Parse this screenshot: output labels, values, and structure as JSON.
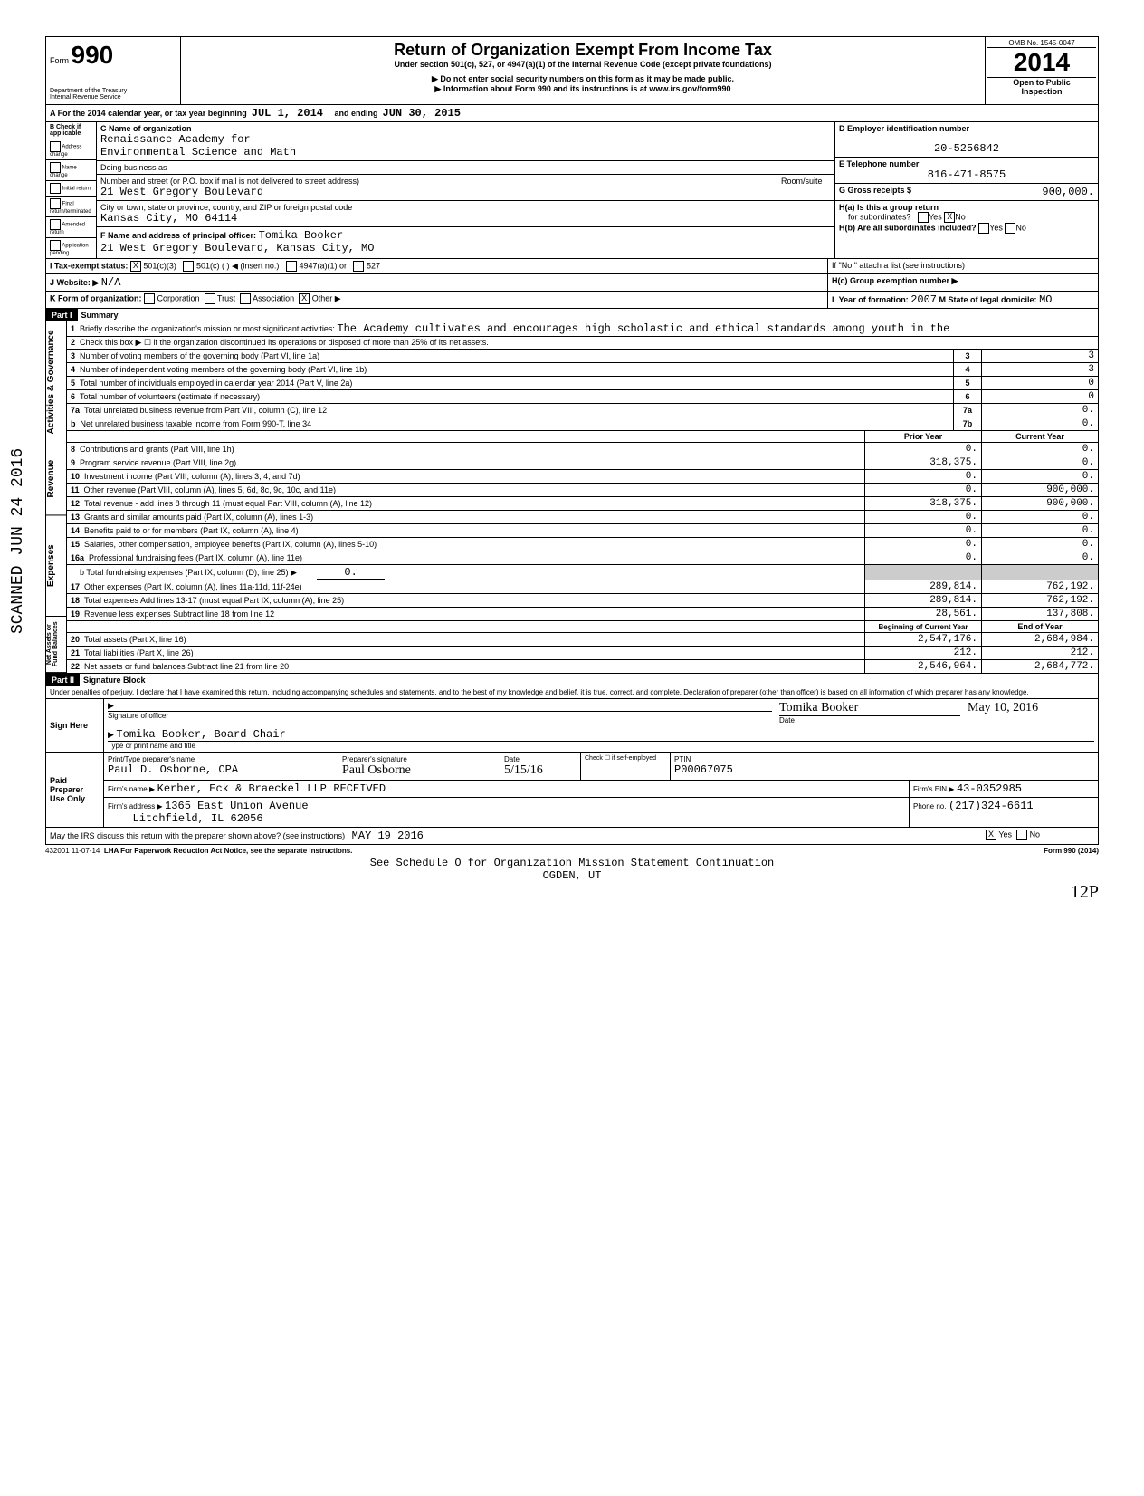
{
  "form": {
    "number": "990",
    "prefix": "Form",
    "dept": "Department of the Treasury",
    "irs": "Internal Revenue Service",
    "title": "Return of Organization Exempt From Income Tax",
    "subtitle": "Under section 501(c), 527, or 4947(a)(1) of the Internal Revenue Code (except private foundations)",
    "warn1": "▶ Do not enter social security numbers on this form as it may be made public.",
    "warn2": "▶ Information about Form 990 and its instructions is at www.irs.gov/form990",
    "omb": "OMB No. 1545-0047",
    "year": "2014",
    "inspect1": "Open to Public",
    "inspect2": "Inspection"
  },
  "periodLine": {
    "prefix": "A For the 2014 calendar year, or tax year beginning",
    "begin": "JUL 1, 2014",
    "mid": "and ending",
    "end": "JUN 30, 2015"
  },
  "B": {
    "header": "B Check if applicable",
    "items": [
      "Address change",
      "Name change",
      "Initial return",
      "Final return/terminated",
      "Amended return",
      "Application pending"
    ]
  },
  "C": {
    "label": "C Name of organization",
    "name1": "Renaissance Academy for",
    "name2": "Environmental Science and Math",
    "dba": "Doing business as",
    "streetLbl": "Number and street (or P.O. box if mail is not delivered to street address)",
    "street": "21 West Gregory Boulevard",
    "roomLbl": "Room/suite",
    "cityLbl": "City or town, state or province, country, and ZIP or foreign postal code",
    "city": "Kansas City, MO  64114",
    "officerLbl": "F Name and address of principal officer:",
    "officer": "Tomika Booker",
    "officerAddr": "21 West Gregory Boulevard, Kansas City, MO"
  },
  "D": {
    "label": "D Employer identification number",
    "ein": "20-5256842"
  },
  "E": {
    "label": "E Telephone number",
    "phone": "816-471-8575"
  },
  "G": {
    "label": "G Gross receipts $",
    "val": "900,000."
  },
  "H": {
    "aLbl": "H(a) Is this a group return",
    "aSub": "for subordinates?",
    "bLbl": "H(b) Are all subordinates included?",
    "note": "If \"No,\" attach a list (see instructions)",
    "cLbl": "H(c) Group exemption number ▶",
    "yes": "Yes",
    "no": "No"
  },
  "I": {
    "label": "I Tax-exempt status:",
    "a": "501(c)(3)",
    "b": "501(c) (",
    "bIns": ") ◀ (insert no.)",
    "c": "4947(a)(1) or",
    "d": "527"
  },
  "J": {
    "label": "J Website: ▶",
    "val": "N/A"
  },
  "K": {
    "label": "K Form of organization:",
    "corp": "Corporation",
    "trust": "Trust",
    "assoc": "Association",
    "other": "Other ▶"
  },
  "L": {
    "label": "L Year of formation:",
    "val": "2007",
    "mLabel": "M State of legal domicile:",
    "mVal": "MO"
  },
  "part1": {
    "title": "Part I",
    "name": "Summary",
    "line1": "Briefly describe the organization's mission or most significant activities:",
    "mission": "The Academy cultivates and encourages high scholastic and ethical standards among youth in the",
    "line2": "Check this box ▶ ☐ if the organization discontinued its operations or disposed of more than 25% of its net assets.",
    "rows": [
      {
        "n": "3",
        "txt": "Number of voting members of the governing body (Part VI, line 1a)",
        "box": "3",
        "v": "3"
      },
      {
        "n": "4",
        "txt": "Number of independent voting members of the governing body (Part VI, line 1b)",
        "box": "4",
        "v": "3"
      },
      {
        "n": "5",
        "txt": "Total number of individuals employed in calendar year 2014 (Part V, line 2a)",
        "box": "5",
        "v": "0"
      },
      {
        "n": "6",
        "txt": "Total number of volunteers (estimate if necessary)",
        "box": "6",
        "v": "0"
      },
      {
        "n": "7a",
        "txt": "Total unrelated business revenue from Part VIII, column (C), line 12",
        "box": "7a",
        "v": "0."
      },
      {
        "n": "b",
        "txt": "Net unrelated business taxable income from Form 990-T, line 34",
        "box": "7b",
        "v": "0."
      }
    ],
    "colPrior": "Prior Year",
    "colCurrent": "Current Year",
    "revRows": [
      {
        "n": "8",
        "txt": "Contributions and grants (Part VIII, line 1h)",
        "p": "0.",
        "c": "0."
      },
      {
        "n": "9",
        "txt": "Program service revenue (Part VIII, line 2g)",
        "p": "318,375.",
        "c": "0."
      },
      {
        "n": "10",
        "txt": "Investment income (Part VIII, column (A), lines 3, 4, and 7d)",
        "p": "0.",
        "c": "0."
      },
      {
        "n": "11",
        "txt": "Other revenue (Part VIII, column (A), lines 5, 6d, 8c, 9c, 10c, and 11e)",
        "p": "0.",
        "c": "900,000."
      },
      {
        "n": "12",
        "txt": "Total revenue - add lines 8 through 11 (must equal Part VIII, column (A), line 12)",
        "p": "318,375.",
        "c": "900,000."
      }
    ],
    "expRows": [
      {
        "n": "13",
        "txt": "Grants and similar amounts paid (Part IX, column (A), lines 1-3)",
        "p": "0.",
        "c": "0."
      },
      {
        "n": "14",
        "txt": "Benefits paid to or for members (Part IX, column (A), line 4)",
        "p": "0.",
        "c": "0."
      },
      {
        "n": "15",
        "txt": "Salaries, other compensation, employee benefits (Part IX, column (A), lines 5-10)",
        "p": "0.",
        "c": "0."
      },
      {
        "n": "16a",
        "txt": "Professional fundraising fees (Part IX, column (A), line 11e)",
        "p": "0.",
        "c": "0."
      }
    ],
    "line16b": "b Total fundraising expenses (Part IX, column (D), line 25) ▶",
    "line16bVal": "0.",
    "expRows2": [
      {
        "n": "17",
        "txt": "Other expenses (Part IX, column (A), lines 11a-11d, 11f-24e)",
        "p": "289,814.",
        "c": "762,192."
      },
      {
        "n": "18",
        "txt": "Total expenses Add lines 13-17 (must equal Part IX, column (A), line 25)",
        "p": "289,814.",
        "c": "762,192."
      },
      {
        "n": "19",
        "txt": "Revenue less expenses Subtract line 18 from line 12",
        "p": "28,561.",
        "c": "137,808."
      }
    ],
    "colBegin": "Beginning of Current Year",
    "colEnd": "End of Year",
    "netRows": [
      {
        "n": "20",
        "txt": "Total assets (Part X, line 16)",
        "p": "2,547,176.",
        "c": "2,684,984."
      },
      {
        "n": "21",
        "txt": "Total liabilities (Part X, line 26)",
        "p": "212.",
        "c": "212."
      },
      {
        "n": "22",
        "txt": "Net assets or fund balances Subtract line 21 from line 20",
        "p": "2,546,964.",
        "c": "2,684,772."
      }
    ],
    "sideLabels": {
      "gov": "Activities & Governance",
      "rev": "Revenue",
      "exp": "Expenses",
      "net": "Net Assets or Fund Balances"
    }
  },
  "part2": {
    "title": "Part II",
    "name": "Signature Block",
    "decl": "Under penalties of perjury, I declare that I have examined this return, including accompanying schedules and statements, and to the best of my knowledge and belief, it is true, correct, and complete. Declaration of preparer (other than officer) is based on all information of which preparer has any knowledge.",
    "signHere": "Sign Here",
    "sigOfficer": "Signature of officer",
    "dateLbl": "Date",
    "typedName": "Tomika Booker, Board Chair",
    "typeLbl": "Type or print name and title",
    "sigDate": "May 10, 2016",
    "paid": "Paid Preparer Use Only",
    "prepNameLbl": "Print/Type preparer's name",
    "prepName": "Paul D. Osborne, CPA",
    "prepSigLbl": "Preparer's signature",
    "checkLbl": "Check ☐ if self-employed",
    "ptinLbl": "PTIN",
    "ptin": "P00067075",
    "firmLbl": "Firm's name ▶",
    "firm": "Kerber, Eck & Braeckel LLP",
    "firmEinLbl": "Firm's EIN ▶",
    "firmEin": "43-0352985",
    "firmAddrLbl": "Firm's address ▶",
    "firmAddr1": "1365 East Union Avenue",
    "firmAddr2": "Litchfield, IL 62056",
    "phoneLbl": "Phone no.",
    "phone": "(217)324-6611",
    "discuss": "May the IRS discuss this return with the preparer shown above? (see instructions)",
    "received": "RECEIVED",
    "recDate": "MAY 19 2016"
  },
  "footer": {
    "code": "432001 11-07-14",
    "lha": "LHA For Paperwork Reduction Act Notice, see the separate instructions.",
    "form": "Form 990 (2014)",
    "sched": "See Schedule O for Organization Mission Statement Continuation",
    "ogden": "OGDEN, UT"
  },
  "scanned": "SCANNED JUN 24 2016",
  "pageNum": "12P"
}
